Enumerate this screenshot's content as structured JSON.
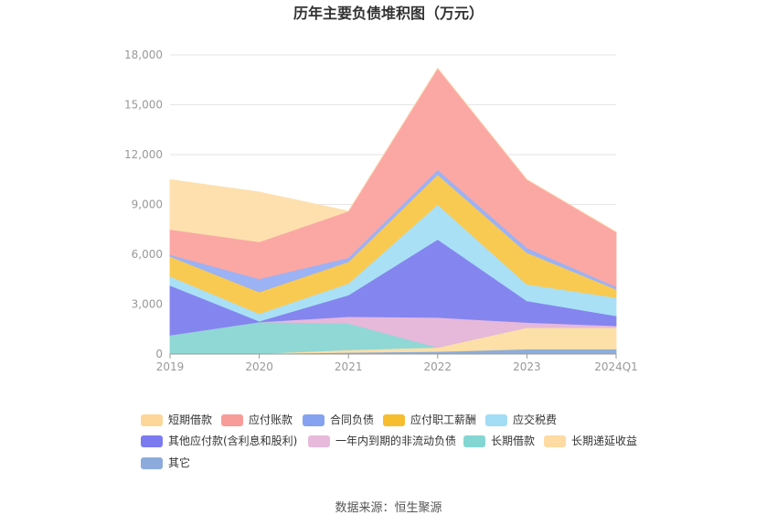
{
  "chart_data": {
    "type": "area",
    "stacked": true,
    "title": "历年主要负债堆积图（万元）",
    "x": [
      "2019",
      "2020",
      "2021",
      "2022",
      "2023",
      "2024Q1"
    ],
    "ylim": [
      0,
      18000
    ],
    "yticks": [
      "0",
      "3,000",
      "6,000",
      "9,000",
      "12,000",
      "15,000",
      "18,000"
    ],
    "grid": true,
    "legend_position": "bottom",
    "source": "数据来源：恒生聚源",
    "series": [
      {
        "name": "其它",
        "color": "#8eadd9",
        "values": [
          30,
          30,
          100,
          150,
          300,
          300
        ]
      },
      {
        "name": "长期递延收益",
        "color": "#fddfa8",
        "values": [
          0,
          0,
          150,
          250,
          1300,
          1300
        ]
      },
      {
        "name": "长期借款",
        "color": "#8fd8d5",
        "values": [
          1100,
          1900,
          1600,
          0,
          0,
          0
        ]
      },
      {
        "name": "一年内到期的非流动负债",
        "color": "#e6b8da",
        "values": [
          0,
          0,
          400,
          1800,
          300,
          100
        ]
      },
      {
        "name": "其他应付款(含利息和股利)",
        "color": "#8585ef",
        "values": [
          3000,
          50,
          1300,
          4700,
          1300,
          600
        ]
      },
      {
        "name": "应交税费",
        "color": "#a9e0f6",
        "values": [
          550,
          450,
          700,
          2100,
          1000,
          1100
        ]
      },
      {
        "name": "应付职工薪酬",
        "color": "#f9ca52",
        "values": [
          1200,
          1300,
          1300,
          1800,
          1900,
          500
        ]
      },
      {
        "name": "合同负债",
        "color": "#9bb2f4",
        "values": [
          100,
          800,
          250,
          300,
          300,
          150
        ]
      },
      {
        "name": "应付账款",
        "color": "#fba8a5",
        "values": [
          1520,
          2220,
          2800,
          6100,
          4100,
          3300
        ]
      },
      {
        "name": "短期借款",
        "color": "#fde0ae",
        "values": [
          3000,
          3000,
          0,
          0,
          0,
          0
        ]
      }
    ],
    "legend": [
      {
        "name": "短期借款",
        "color": "#fdd79a"
      },
      {
        "name": "应付账款",
        "color": "#f79c98"
      },
      {
        "name": "合同负债",
        "color": "#85a2f0"
      },
      {
        "name": "应付职工薪酬",
        "color": "#f6bd2f"
      },
      {
        "name": "应交税费",
        "color": "#a3dcf5"
      },
      {
        "name": "其他应付款(含利息和股利)",
        "color": "#7b7bf0"
      },
      {
        "name": "一年内到期的非流动负债",
        "color": "#e7badb"
      },
      {
        "name": "长期借款",
        "color": "#84d6d2"
      },
      {
        "name": "长期递延收益",
        "color": "#fddba3"
      },
      {
        "name": "其它",
        "color": "#8cabdc"
      }
    ]
  }
}
